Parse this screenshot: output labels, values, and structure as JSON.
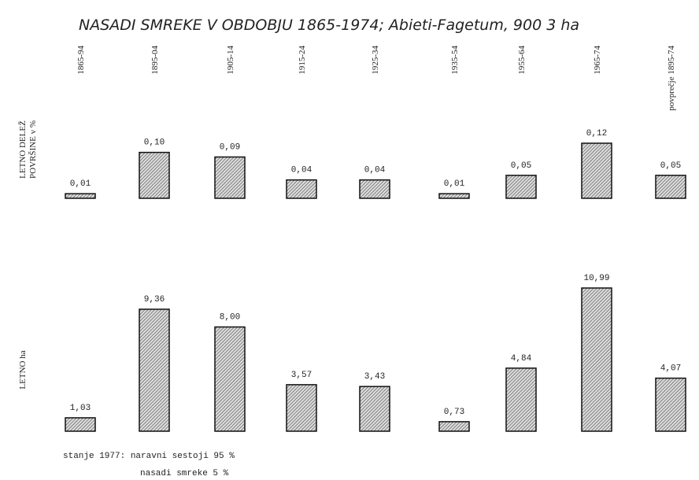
{
  "chart_data": {
    "type": "bar",
    "title": "NASADI SMREKE V OBDOBJU 1865-1974; Abieti-Fagetum, 900 3 ha",
    "categories": [
      "1865-94",
      "1895-04",
      "1905-14",
      "1915-24",
      "1925-34",
      "1935-54",
      "1955-64",
      "1965-74",
      "povprečje 1895-74"
    ],
    "color": "#555555",
    "panels": [
      {
        "ylabel": [
          "LETNO DELEŽ",
          "POVRŠINE v %"
        ],
        "values": [
          0.01,
          0.1,
          0.09,
          0.04,
          0.04,
          0.01,
          0.05,
          0.12,
          0.05
        ],
        "value_labels": [
          "0,01",
          "0,10",
          "0,09",
          "0,04",
          "0,04",
          "0,01",
          "0,05",
          "0,12",
          "0,05"
        ]
      },
      {
        "ylabel": [
          "LETNO ha"
        ],
        "values": [
          1.03,
          9.36,
          8.0,
          3.57,
          3.43,
          0.73,
          4.84,
          10.99,
          4.07
        ],
        "value_labels": [
          "1,03",
          "9,36",
          "8,00",
          "3,57",
          "3,43",
          "0,73",
          "4,84",
          "10,99",
          "4,07"
        ]
      }
    ],
    "notes": [
      "stanje 1977: naravni sestoji 95 %",
      "nasadi smreke 5 %"
    ]
  }
}
